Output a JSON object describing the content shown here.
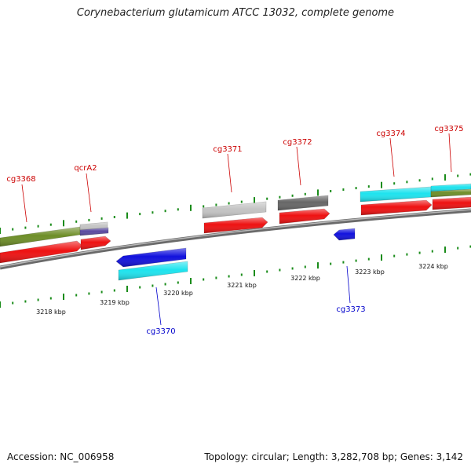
{
  "title": "Corynebacterium glutamicum ATCC 13032, complete genome",
  "footer": {
    "accession": "Accession: NC_006958",
    "summary": "Topology: circular; Length: 3,282,708 bp; Genes: 3,142"
  },
  "colors": {
    "tick": "#1a8c1a",
    "backbone": "#7a7a7a",
    "forward_label": "#cc0000",
    "reverse_label": "#0000cc",
    "cds": "#ee1111",
    "olive": "#6e8e28",
    "cyan": "#1ee3ee",
    "blue": "#1111dd",
    "light_gray": "#c4c4c4",
    "dark_gray": "#666666",
    "purple": "#5a4aa0"
  },
  "scale": {
    "labels": [
      "3218 kbp",
      "3219 kbp",
      "3220 kbp",
      "3221 kbp",
      "3222 kbp",
      "3223 kbp",
      "3224 kbp"
    ],
    "positions_kbp": [
      3218,
      3219,
      3220,
      3221,
      3222,
      3223,
      3224
    ]
  },
  "genes": [
    {
      "label": "cg3368",
      "strand": "forward"
    },
    {
      "label": "qcrA2",
      "strand": "forward"
    },
    {
      "label": "cg3371",
      "strand": "forward"
    },
    {
      "label": "cg3372",
      "strand": "forward"
    },
    {
      "label": "cg3374",
      "strand": "forward"
    },
    {
      "label": "cg3375",
      "strand": "forward"
    },
    {
      "label": "cg3370",
      "strand": "reverse"
    },
    {
      "label": "cg3373",
      "strand": "reverse"
    }
  ]
}
